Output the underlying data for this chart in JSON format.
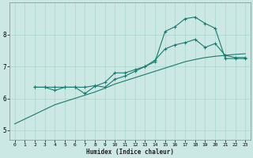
{
  "xlabel": "Humidex (Indice chaleur)",
  "ylabel": "",
  "background_color": "#cce8e4",
  "grid_color": "#aad4ce",
  "line_color": "#1a7a6e",
  "xlim": [
    -0.5,
    23.5
  ],
  "ylim": [
    4.7,
    9.0
  ],
  "yticks": [
    5,
    6,
    7,
    8
  ],
  "xticks": [
    0,
    1,
    2,
    3,
    4,
    5,
    6,
    7,
    8,
    9,
    10,
    11,
    12,
    13,
    14,
    15,
    16,
    17,
    18,
    19,
    20,
    21,
    22,
    23
  ],
  "series": [
    {
      "x": [
        0,
        1,
        2,
        3,
        4,
        5,
        6,
        7,
        8,
        9,
        10,
        11,
        12,
        13,
        14,
        15,
        16,
        17,
        18,
        19,
        20,
        21,
        22,
        23
      ],
      "y": [
        5.2,
        5.35,
        5.5,
        5.65,
        5.8,
        5.9,
        6.0,
        6.1,
        6.2,
        6.32,
        6.45,
        6.55,
        6.65,
        6.75,
        6.85,
        6.95,
        7.05,
        7.15,
        7.22,
        7.28,
        7.32,
        7.35,
        7.38,
        7.4
      ],
      "has_markers": false
    },
    {
      "x": [
        2,
        3,
        4,
        5,
        6,
        7,
        8,
        9,
        10,
        11,
        12,
        13,
        14,
        15,
        16,
        17,
        18,
        19,
        20,
        21,
        22,
        23
      ],
      "y": [
        6.35,
        6.35,
        6.25,
        6.35,
        6.35,
        6.15,
        6.38,
        6.5,
        6.8,
        6.8,
        6.9,
        7.0,
        7.2,
        7.55,
        7.68,
        7.75,
        7.85,
        7.6,
        7.72,
        7.35,
        7.28,
        7.28
      ],
      "has_markers": true
    },
    {
      "x": [
        2,
        3,
        4,
        5,
        6,
        7,
        8,
        9,
        10,
        11,
        12,
        13,
        14,
        15,
        16,
        17,
        18,
        19,
        20,
        21,
        22,
        23
      ],
      "y": [
        6.35,
        6.35,
        6.35,
        6.35,
        6.35,
        6.35,
        6.4,
        6.35,
        6.6,
        6.7,
        6.85,
        7.0,
        7.15,
        8.1,
        8.25,
        8.5,
        8.55,
        8.35,
        8.2,
        7.25,
        7.25,
        7.25
      ],
      "has_markers": true
    }
  ]
}
